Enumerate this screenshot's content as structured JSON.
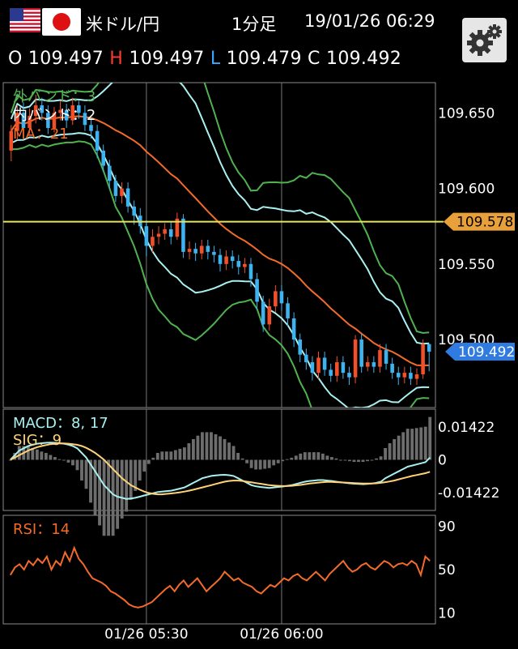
{
  "header": {
    "pair": "米ドル/円",
    "timeframe": "1分足",
    "datetime": "19/01/26 06:29",
    "ohlc": {
      "o_label": "O",
      "o_value": "109.497",
      "h_label": "H",
      "h_value": "109.497",
      "l_label": "L",
      "l_value": "109.479",
      "c_label": "C",
      "c_value": "109.492"
    },
    "flags": [
      "us-flag-icon",
      "japan-flag-icon"
    ],
    "settings_icon": "gear-icon"
  },
  "chart_data": [
    {
      "type": "candlestick",
      "panel": "price",
      "indicators": {
        "sigma_outer": "外バンド：3",
        "sigma_inner": "内バンド：2",
        "ma": "MA：21"
      },
      "y_ticks": [
        "109.650",
        "109.600",
        "109.550",
        "109.500"
      ],
      "ylim": [
        109.455,
        109.67
      ],
      "highlight_line": {
        "value": 109.578,
        "label": "109.578",
        "color": "#e6e65a"
      },
      "last_price": {
        "value": 109.492,
        "label": "109.492",
        "color": "#2f7be0"
      },
      "x_ticks": [
        "01/26 05:30",
        "01/26 06:00"
      ],
      "candles": [
        [
          109.625,
          109.638,
          109.618,
          109.642
        ],
        [
          109.638,
          109.65,
          109.632,
          109.655
        ],
        [
          109.65,
          109.64,
          109.635,
          109.657
        ],
        [
          109.64,
          109.648,
          109.636,
          109.653
        ],
        [
          109.648,
          109.655,
          109.643,
          109.662
        ],
        [
          109.655,
          109.65,
          109.645,
          109.66
        ],
        [
          109.65,
          109.64,
          109.636,
          109.655
        ],
        [
          109.64,
          109.65,
          109.637,
          109.654
        ],
        [
          109.65,
          109.652,
          109.645,
          109.658
        ],
        [
          109.652,
          109.645,
          109.64,
          109.656
        ],
        [
          109.645,
          109.655,
          109.642,
          109.66
        ],
        [
          109.655,
          109.65,
          109.646,
          109.658
        ],
        [
          109.65,
          109.642,
          109.638,
          109.655
        ],
        [
          109.642,
          109.638,
          109.633,
          109.647
        ],
        [
          109.638,
          109.625,
          109.62,
          109.642
        ],
        [
          109.625,
          109.615,
          109.611,
          109.629
        ],
        [
          109.615,
          109.605,
          109.6,
          109.619
        ],
        [
          109.605,
          109.595,
          109.591,
          109.609
        ],
        [
          109.595,
          109.6,
          109.59,
          109.604
        ],
        [
          109.6,
          109.588,
          109.584,
          109.604
        ],
        [
          109.588,
          109.582,
          109.576,
          109.592
        ],
        [
          109.582,
          109.575,
          109.57,
          109.587
        ],
        [
          109.575,
          109.562,
          109.555,
          109.579
        ],
        [
          109.562,
          109.568,
          109.558,
          109.573
        ],
        [
          109.568,
          109.57,
          109.563,
          109.575
        ],
        [
          109.57,
          109.573,
          109.566,
          109.577
        ],
        [
          109.573,
          109.568,
          109.563,
          109.578
        ],
        [
          109.568,
          109.58,
          109.566,
          109.584
        ],
        [
          109.58,
          109.558,
          109.554,
          109.583
        ],
        [
          109.558,
          109.56,
          109.553,
          109.565
        ],
        [
          109.56,
          109.557,
          109.552,
          109.564
        ],
        [
          109.557,
          109.562,
          109.553,
          109.566
        ],
        [
          109.562,
          109.558,
          109.553,
          109.566
        ],
        [
          109.558,
          109.556,
          109.551,
          109.562
        ],
        [
          109.556,
          109.55,
          109.545,
          109.56
        ],
        [
          109.55,
          109.555,
          109.546,
          109.559
        ],
        [
          109.555,
          109.552,
          109.547,
          109.559
        ],
        [
          109.552,
          109.548,
          109.543,
          109.556
        ],
        [
          109.548,
          109.55,
          109.544,
          109.554
        ],
        [
          109.55,
          109.54,
          109.535,
          109.554
        ],
        [
          109.54,
          109.525,
          109.52,
          109.544
        ],
        [
          109.525,
          109.51,
          109.505,
          109.529
        ],
        [
          109.51,
          109.522,
          109.506,
          109.527
        ],
        [
          109.522,
          109.532,
          109.518,
          109.536
        ],
        [
          109.532,
          109.524,
          109.519,
          109.536
        ],
        [
          109.524,
          109.514,
          109.509,
          109.528
        ],
        [
          109.514,
          109.5,
          109.495,
          109.518
        ],
        [
          109.5,
          109.49,
          109.485,
          109.504
        ],
        [
          109.49,
          109.485,
          109.48,
          109.494
        ],
        [
          109.485,
          109.478,
          109.473,
          109.489
        ],
        [
          109.478,
          109.488,
          109.474,
          109.492
        ],
        [
          109.488,
          109.48,
          109.476,
          109.492
        ],
        [
          109.48,
          109.476,
          109.472,
          109.484
        ],
        [
          109.476,
          109.485,
          109.472,
          109.489
        ],
        [
          109.485,
          109.478,
          109.474,
          109.489
        ],
        [
          109.478,
          109.475,
          109.47,
          109.482
        ],
        [
          109.475,
          109.5,
          109.471,
          109.503
        ],
        [
          109.5,
          109.482,
          109.478,
          109.504
        ],
        [
          109.482,
          109.485,
          109.479,
          109.489
        ],
        [
          109.485,
          109.482,
          109.478,
          109.489
        ],
        [
          109.482,
          109.493,
          109.478,
          109.497
        ],
        [
          109.493,
          109.484,
          109.48,
          109.497
        ],
        [
          109.484,
          109.478,
          109.474,
          109.488
        ],
        [
          109.478,
          109.475,
          109.47,
          109.482
        ],
        [
          109.475,
          109.478,
          109.471,
          109.482
        ],
        [
          109.478,
          109.474,
          109.47,
          109.482
        ],
        [
          109.474,
          109.477,
          109.47,
          109.481
        ],
        [
          109.477,
          109.497,
          109.474,
          109.5
        ],
        [
          109.497,
          109.492,
          109.479,
          109.497
        ]
      ]
    },
    {
      "type": "line",
      "panel": "macd",
      "labels": {
        "macd": "MACD：8, 17",
        "sig": "SIG：9"
      },
      "y_ticks": [
        "0.01422",
        "0",
        "-0.01422"
      ],
      "ylim": [
        -0.022,
        0.022
      ],
      "macd": [
        0,
        0.002,
        0.004,
        0.005,
        0.006,
        0.0065,
        0.007,
        0.0072,
        0.0074,
        0.0075,
        0.0074,
        0.0072,
        0.007,
        0.0066,
        0.006,
        0.005,
        0.003,
        0.001,
        -0.002,
        -0.005,
        -0.008,
        -0.011,
        -0.013,
        -0.015,
        -0.016,
        -0.0165,
        -0.017,
        -0.0168,
        -0.0165,
        -0.016,
        -0.0155,
        -0.015,
        -0.0145,
        -0.014,
        -0.0138,
        -0.0136,
        -0.0134,
        -0.013,
        -0.0125,
        -0.012,
        -0.011,
        -0.01,
        -0.009,
        -0.008,
        -0.0075,
        -0.007,
        -0.0068,
        -0.0066,
        -0.0065,
        -0.0067,
        -0.007,
        -0.008,
        -0.009,
        -0.01,
        -0.011,
        -0.0115,
        -0.0118,
        -0.012,
        -0.0122,
        -0.012,
        -0.0118,
        -0.0116,
        -0.0113,
        -0.011,
        -0.0105,
        -0.01,
        -0.0095,
        -0.0092,
        -0.009,
        -0.0088,
        -0.0088,
        -0.009,
        -0.0092,
        -0.0095,
        -0.0098,
        -0.01,
        -0.0102,
        -0.0104,
        -0.0105,
        -0.0106,
        -0.0105,
        -0.0103,
        -0.01,
        -0.0095,
        -0.008,
        -0.007,
        -0.006,
        -0.005,
        -0.004,
        -0.003,
        -0.0025,
        -0.002,
        -0.0015,
        -0.001,
        0.001
      ],
      "signal": [
        0,
        0.001,
        0.002,
        0.003,
        0.004,
        0.0048,
        0.0055,
        0.006,
        0.0064,
        0.0068,
        0.007,
        0.0071,
        0.0071,
        0.007,
        0.0068,
        0.0065,
        0.006,
        0.0052,
        0.0042,
        0.003,
        0.0015,
        0,
        -0.002,
        -0.004,
        -0.006,
        -0.008,
        -0.0095,
        -0.011,
        -0.012,
        -0.013,
        -0.0138,
        -0.0144,
        -0.0148,
        -0.015,
        -0.015,
        -0.0148,
        -0.0146,
        -0.0144,
        -0.0141,
        -0.0138,
        -0.0134,
        -0.013,
        -0.0125,
        -0.012,
        -0.0115,
        -0.011,
        -0.0105,
        -0.01,
        -0.0095,
        -0.0092,
        -0.009,
        -0.009,
        -0.0092,
        -0.0095,
        -0.0098,
        -0.0101,
        -0.0104,
        -0.0107,
        -0.011,
        -0.0112,
        -0.0113,
        -0.0114,
        -0.0114,
        -0.0113,
        -0.0111,
        -0.0109,
        -0.0106,
        -0.0103,
        -0.0101,
        -0.0099,
        -0.0097,
        -0.0096,
        -0.0096,
        -0.0097,
        -0.0098,
        -0.0099,
        -0.01,
        -0.0101,
        -0.0102,
        -0.0103,
        -0.0103,
        -0.0103,
        -0.0102,
        -0.01,
        -0.0097,
        -0.0094,
        -0.009,
        -0.0085,
        -0.008,
        -0.0075,
        -0.007,
        -0.0066,
        -0.0062,
        -0.0058,
        -0.0052
      ]
    },
    {
      "type": "line",
      "panel": "rsi",
      "label": "RSI：14",
      "y_ticks": [
        "90",
        "50",
        "10"
      ],
      "ylim": [
        0,
        100
      ],
      "values": [
        45,
        52,
        55,
        50,
        58,
        54,
        60,
        56,
        62,
        50,
        58,
        54,
        66,
        58,
        70,
        60,
        55,
        48,
        42,
        40,
        38,
        35,
        30,
        28,
        25,
        22,
        18,
        16,
        15,
        16,
        18,
        20,
        24,
        28,
        32,
        35,
        30,
        36,
        40,
        34,
        38,
        42,
        36,
        30,
        34,
        38,
        42,
        48,
        44,
        40,
        42,
        38,
        36,
        34,
        30,
        28,
        32,
        36,
        34,
        38,
        42,
        40,
        44,
        46,
        42,
        40,
        44,
        48,
        44,
        40,
        46,
        50,
        54,
        58,
        52,
        48,
        50,
        54,
        56,
        52,
        50,
        54,
        58,
        56,
        52,
        55,
        56,
        54,
        58,
        55,
        45,
        62,
        58
      ]
    }
  ]
}
